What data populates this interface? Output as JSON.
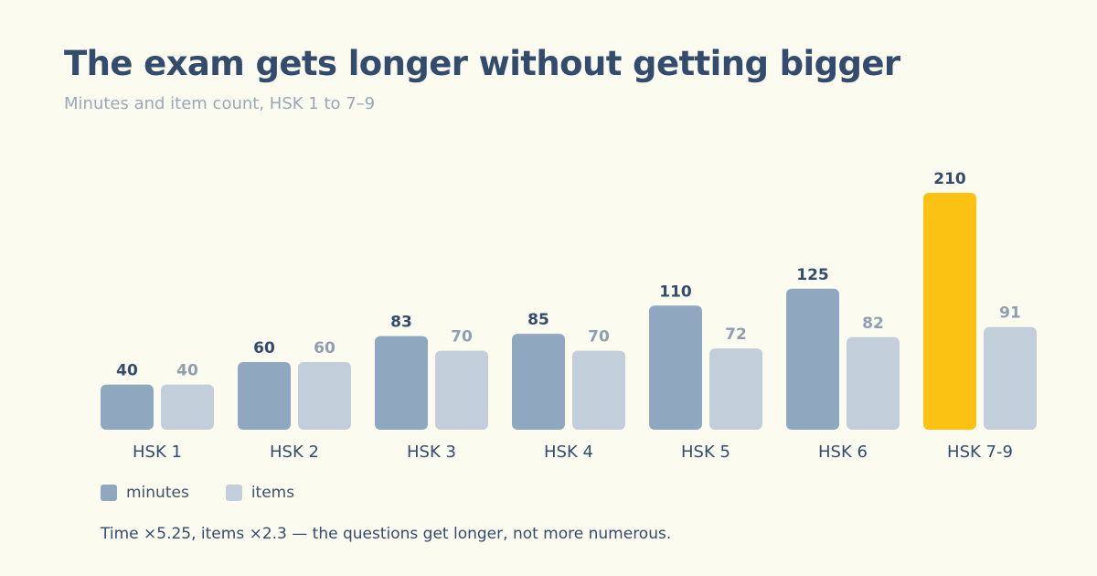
{
  "title": "The exam gets longer without getting bigger",
  "subtitle": "Minutes and item count, HSK 1 to 7–9",
  "footnote": "Time ×5.25, items ×2.3 — the questions get longer, not more numerous.",
  "colors": {
    "background": "#fbfbef",
    "minutes": "#8fa8bf",
    "items": "#c2ceda",
    "highlight": "#fbc214",
    "label_dark": "#334b6c",
    "label_light": "#8f9fb0"
  },
  "legend": [
    {
      "label": "minutes",
      "color": "#8fa8bf"
    },
    {
      "label": "items",
      "color": "#c2ceda"
    }
  ],
  "chart_data": {
    "type": "bar",
    "categories": [
      "HSK 1",
      "HSK 2",
      "HSK 3",
      "HSK 4",
      "HSK 5",
      "HSK 6",
      "HSK 7-9"
    ],
    "series": [
      {
        "name": "minutes",
        "values": [
          40,
          60,
          83,
          85,
          110,
          125,
          210
        ]
      },
      {
        "name": "items",
        "values": [
          40,
          60,
          70,
          70,
          72,
          82,
          91
        ]
      }
    ],
    "highlight": {
      "series": "minutes",
      "category": "HSK 7-9"
    },
    "data_labels": true,
    "grid": false,
    "legend_position": "bottom-left"
  }
}
